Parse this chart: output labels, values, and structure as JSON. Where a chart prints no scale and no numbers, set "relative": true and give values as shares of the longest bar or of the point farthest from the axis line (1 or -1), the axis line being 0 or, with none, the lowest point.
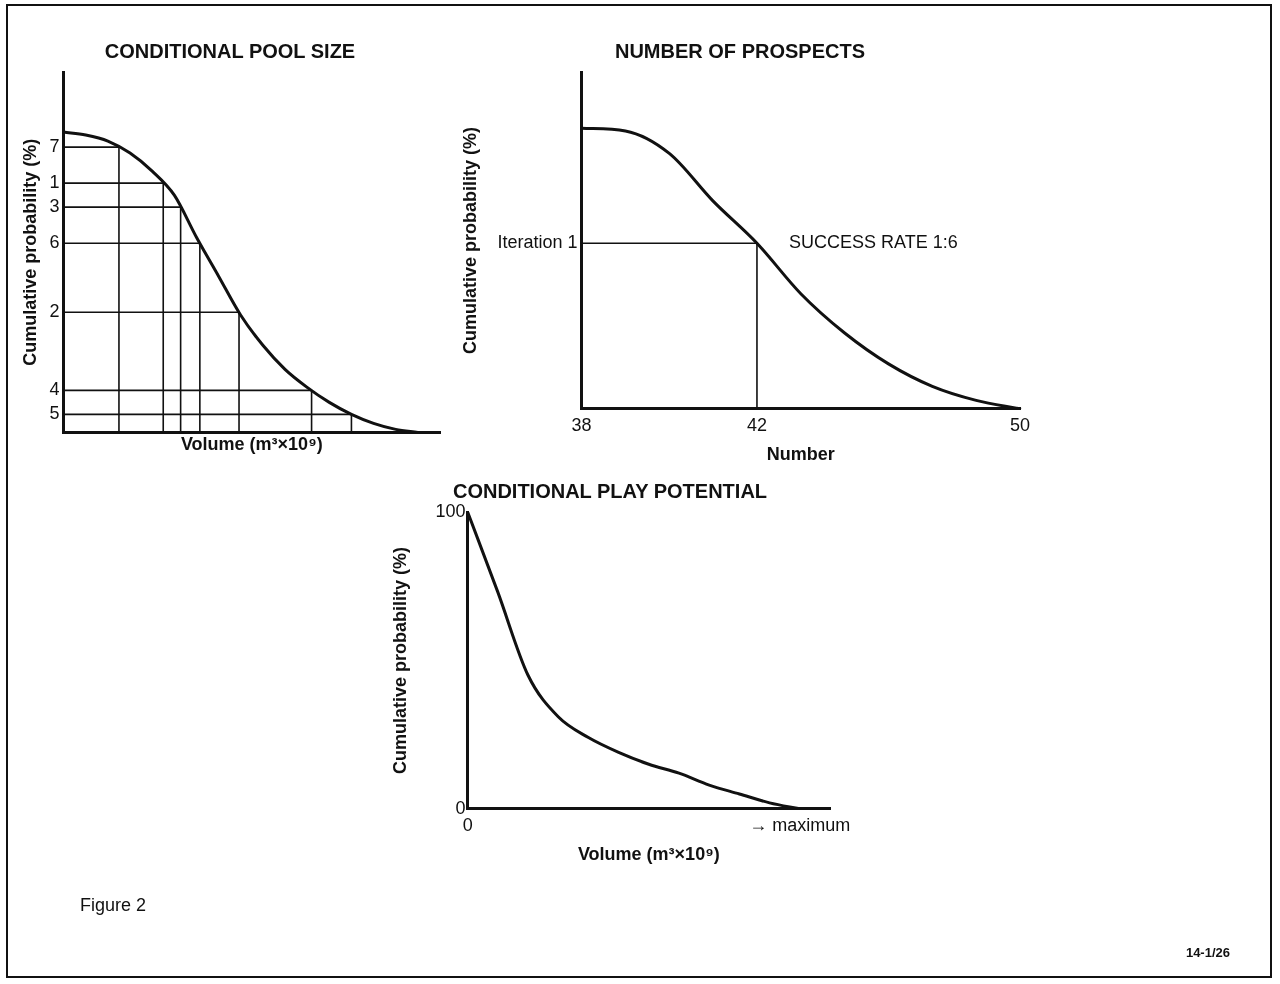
{
  "chart_data": [
    {
      "type": "line",
      "title": "CONDITIONAL POOL SIZE",
      "xlabel": "Volume (m³×10⁹)",
      "ylabel": "Cumulative probability (%)",
      "relative": true,
      "tick_labels": false,
      "grid": false,
      "legend": false,
      "marker": "none",
      "line_style": "solid",
      "categories": [
        null,
        null,
        null,
        null,
        null,
        null,
        null,
        null,
        null,
        null,
        null,
        null,
        null,
        null,
        null,
        null,
        null,
        null
      ],
      "series": [
        {
          "color": "#111111",
          "values": [
            1.0,
            0.99,
            0.97,
            0.93,
            0.87,
            0.79,
            0.65,
            0.52,
            0.39,
            0.29,
            0.21,
            0.15,
            0.1,
            0.06,
            0.03,
            0.01,
            0,
            null
          ]
        }
      ],
      "ref_lines": [
        {
          "axis": "y",
          "value": 0.95
        },
        {
          "axis": "y",
          "value": 0.83
        },
        {
          "axis": "y",
          "value": 0.75
        },
        {
          "axis": "y",
          "value": 0.63
        },
        {
          "axis": "y",
          "value": 0.4
        },
        {
          "axis": "y",
          "value": 0.14
        },
        {
          "axis": "y",
          "value": 0.06
        }
      ],
      "annotations": [
        "7",
        "1",
        "3",
        "6",
        "2",
        "4",
        "5"
      ]
    },
    {
      "type": "line",
      "title": "NUMBER OF PROSPECTS",
      "xlabel": "Number",
      "ylabel": "Cumulative probability (%)",
      "relative": true,
      "tick_labels": "x",
      "grid": false,
      "legend": false,
      "marker": "none",
      "line_style": "solid",
      "categories": [
        "38",
        null,
        null,
        null,
        "42",
        null,
        null,
        null,
        null,
        null,
        "50"
      ],
      "series": [
        {
          "color": "#111111",
          "values": [
            1.0,
            0.99,
            0.91,
            0.74,
            0.59,
            0.41,
            0.27,
            0.16,
            0.08,
            0.03,
            0
          ]
        }
      ],
      "ref_lines": [
        {
          "axis": "y",
          "value": 0.59,
          "label": "Iteration 1"
        }
      ],
      "annotations": [
        {
          "text": "SUCCESS RATE 1:6",
          "x": "42",
          "y": 0.59
        }
      ]
    },
    {
      "type": "line",
      "title": "CONDITIONAL PLAY POTENTIAL",
      "xlabel": "Volume (m³×10⁹)",
      "ylabel": "Cumulative probability (%)",
      "grid": false,
      "legend": false,
      "marker": "none",
      "line_style": "solid",
      "categories": [
        "0",
        null,
        null,
        null,
        null,
        null,
        null,
        null,
        null,
        null,
        null,
        "→ maximum",
        null
      ],
      "ylim": [
        0,
        100
      ],
      "yticks": [
        0,
        100
      ],
      "series": [
        {
          "color": "#111111",
          "values": [
            100,
            73,
            45,
            31,
            24,
            19,
            15,
            12,
            8,
            5,
            2,
            0,
            null
          ]
        }
      ],
      "annotations": [
        "Figure 2",
        "14-1/26"
      ]
    }
  ]
}
